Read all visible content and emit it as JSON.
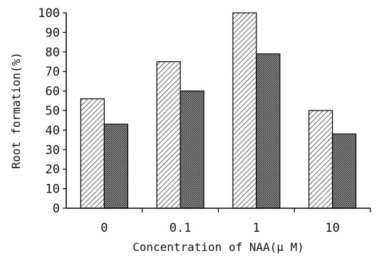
{
  "chart_data": {
    "type": "bar",
    "title": "",
    "xlabel": "Concentration of NAA(μ M)",
    "ylabel": "Root formation(%)",
    "categories": [
      "0",
      "0.1",
      "1",
      "10"
    ],
    "series": [
      {
        "values": [
          56,
          75,
          100,
          50
        ]
      },
      {
        "values": [
          43,
          60,
          79,
          38
        ]
      }
    ],
    "ylim": [
      0,
      100
    ],
    "yticks": [
      "0",
      "10",
      "20",
      "30",
      "40",
      "50",
      "60",
      "70",
      "80",
      "90",
      "100"
    ],
    "grid": false,
    "legend": "none"
  }
}
